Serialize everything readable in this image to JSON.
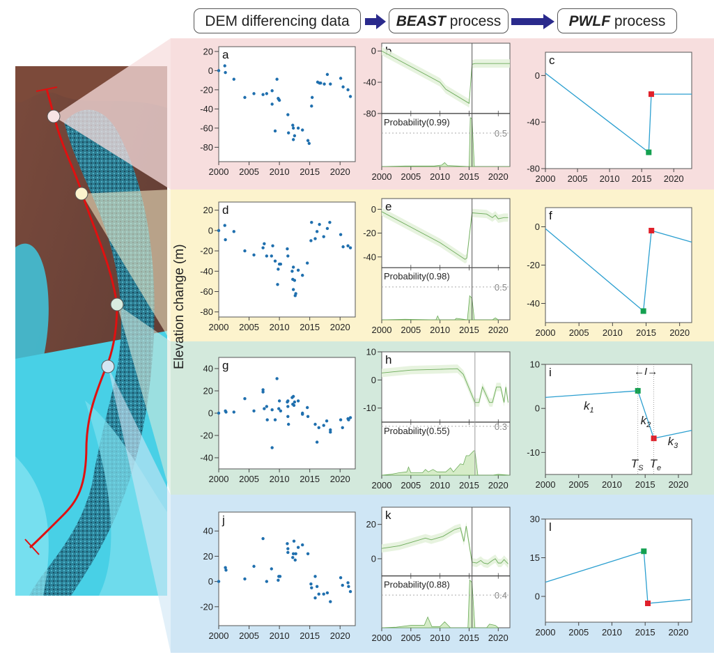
{
  "header": {
    "step1": "DEM differencing data",
    "step2_bold": "BEAST",
    "step2_rest": " process",
    "step3_bold": "PWLF",
    "step3_rest": " process"
  },
  "colors": {
    "band_a": "#f7dede",
    "band_d": "#fcf3cd",
    "band_g": "#d3e9dc",
    "band_j": "#cfe6f5",
    "scatter": "#1f6fae",
    "pwlf_line": "#2b9fd0",
    "start_marker": "#14a050",
    "end_marker": "#e0202a",
    "beast_line": "#6cab5a",
    "beast_band": "#e4f2dc",
    "arrow": "#2a2a8c",
    "profile_line": "#e01010"
  },
  "ylabel": "Elevation change (m)",
  "map": {
    "markers": [
      "profile-point-1",
      "profile-point-2",
      "profile-point-3",
      "profile-point-4"
    ]
  },
  "chart_data": [
    {
      "panel": "a",
      "type": "scatter",
      "xlim": [
        2000,
        2022.5
      ],
      "ylim": [
        -95,
        25
      ],
      "xticks": [
        2000,
        2005,
        2010,
        2015,
        2020
      ],
      "yticks": [
        20,
        0,
        -20,
        -40,
        -60,
        -80
      ],
      "x": [
        2000,
        2001,
        2001.1,
        2002.5,
        2004.3,
        2005.8,
        2007.3,
        2007.9,
        2008.8,
        2008.8,
        2009.3,
        2009.6,
        2009.8,
        2009.9,
        2010,
        2011.4,
        2011.5,
        2012.2,
        2012.3,
        2012.3,
        2012.5,
        2013.1,
        2013.8,
        2014.7,
        2014.9,
        2015.3,
        2015.4,
        2016.3,
        2016.6,
        2016.8,
        2017.4,
        2017.9,
        2018.4,
        2020.1,
        2020.5,
        2021.3,
        2021.7
      ],
      "y": [
        0,
        5,
        -2,
        -9,
        -28,
        -24,
        -25,
        -24,
        -21,
        -35,
        -63,
        -9,
        -29,
        -30,
        -31,
        -46,
        -65,
        -57,
        -60,
        -72,
        -68,
        -60,
        -62,
        -73,
        -76,
        -37,
        -28,
        -12,
        -13,
        -13,
        -14,
        -4,
        -14,
        -8,
        -17,
        -20,
        -27
      ]
    },
    {
      "panel": "b",
      "type": "line",
      "xlim": [
        2000,
        2022
      ],
      "ylim": [
        -80,
        10
      ],
      "xticks": [
        2000,
        2005,
        2010,
        2015,
        2020
      ],
      "yticks": [
        0,
        -40,
        -80
      ],
      "x": [
        2000,
        2005,
        2010,
        2011,
        2015,
        2015.5,
        2016,
        2022
      ],
      "y": [
        0,
        -20,
        -40,
        -49,
        -67,
        -17,
        -16,
        -16
      ],
      "changepoint": 2015.5,
      "probability_label": "Probability(0.99)",
      "prob_ref": "0.5",
      "prob_max": 1.0,
      "prob_x": [
        2000,
        2004,
        2009,
        2010.3,
        2010.8,
        2011.3,
        2015,
        2015.2,
        2015.5,
        2015.9,
        2016,
        2022
      ],
      "prob": [
        0,
        0.01,
        0.01,
        0.03,
        0.08,
        0.02,
        0,
        1.0,
        0.98,
        0,
        0,
        0
      ]
    },
    {
      "panel": "c",
      "type": "line",
      "xlim": [
        2000,
        2022.8
      ],
      "ylim": [
        -80,
        20
      ],
      "xticks": [
        2000,
        2005,
        2010,
        2015,
        2020
      ],
      "yticks": [
        0,
        -40,
        -80
      ],
      "x": [
        2000,
        2016.1,
        2016.5,
        2022.8
      ],
      "y": [
        2,
        -66,
        -16,
        -16
      ],
      "start_point": [
        2016.1,
        -66
      ],
      "end_point": [
        2016.5,
        -16
      ]
    },
    {
      "panel": "d",
      "type": "scatter",
      "xlim": [
        2000,
        2022.5
      ],
      "ylim": [
        -85,
        28
      ],
      "xticks": [
        2000,
        2005,
        2010,
        2015,
        2020
      ],
      "yticks": [
        20,
        0,
        -20,
        -40,
        -60,
        -80
      ],
      "x": [
        2000,
        2001,
        2001.1,
        2002.5,
        2004.3,
        2005.8,
        2007.3,
        2007.5,
        2007.9,
        2008.7,
        2008.9,
        2009.3,
        2009.7,
        2009.8,
        2010,
        2010.2,
        2011.3,
        2011.4,
        2012.1,
        2012.2,
        2012.3,
        2012.3,
        2012.5,
        2012.6,
        2012.7,
        2013.1,
        2013.8,
        2014.6,
        2015.2,
        2015.3,
        2015.9,
        2016.2,
        2016.6,
        2017.3,
        2017.9,
        2018.3,
        2020.1,
        2020.5,
        2021.3,
        2021.7
      ],
      "y": [
        0,
        5,
        -9,
        -1,
        -20,
        -24,
        -17,
        -13,
        -25,
        -25,
        -15,
        -30,
        -53,
        -38,
        -33,
        -33,
        -18,
        -25,
        -40,
        -48,
        -58,
        -36,
        -49,
        -64,
        -62,
        -39,
        -44,
        -32,
        -10,
        8,
        -8,
        -1,
        6,
        -6,
        2,
        8,
        -4,
        -16,
        -15,
        -17
      ]
    },
    {
      "panel": "e",
      "type": "line",
      "xlim": [
        2000,
        2022
      ],
      "ylim": [
        -49,
        9
      ],
      "xticks": [
        2000,
        2005,
        2010,
        2015,
        2020
      ],
      "yticks": [
        0,
        -20,
        -40
      ],
      "x": [
        2000,
        2005,
        2010,
        2014.3,
        2014.6,
        2015.5,
        2018,
        2019,
        2019.5,
        2020,
        2021,
        2021.7
      ],
      "y": [
        -2,
        -15,
        -28,
        -42,
        -41,
        -3,
        -4,
        -7,
        -5,
        -8,
        -7,
        -7
      ],
      "changepoint": 2015.5,
      "probability_label": "Probability(0.98)",
      "prob_ref": "0.5",
      "prob_max": 1.0,
      "prob_x": [
        2000,
        2004,
        2009.3,
        2009.6,
        2009.9,
        2012.5,
        2012.8,
        2014.7,
        2015.1,
        2015.5,
        2015.9,
        2019,
        2019.5,
        2020
      ],
      "prob": [
        0,
        0.01,
        0,
        0.08,
        0,
        0,
        0.03,
        0,
        0.5,
        0.45,
        0,
        0,
        0.04,
        0
      ]
    },
    {
      "panel": "f",
      "type": "line",
      "xlim": [
        2000,
        2021.8
      ],
      "ylim": [
        -50,
        10
      ],
      "xticks": [
        2000,
        2005,
        2010,
        2015,
        2020
      ],
      "yticks": [
        0,
        -20,
        -40
      ],
      "x": [
        2000,
        2014.6,
        2015.8,
        2021.8
      ],
      "y": [
        -1,
        -44,
        -2,
        -8
      ],
      "start_point": [
        2014.6,
        -44
      ],
      "end_point": [
        2015.8,
        -2
      ]
    },
    {
      "panel": "g",
      "type": "scatter",
      "xlim": [
        2000,
        2022.5
      ],
      "ylim": [
        -50,
        50
      ],
      "xticks": [
        2000,
        2005,
        2010,
        2015,
        2020
      ],
      "yticks": [
        40,
        20,
        0,
        -20,
        -40
      ],
      "x": [
        2000,
        2001.1,
        2001.2,
        2002.5,
        2004.3,
        2005.8,
        2007.3,
        2007.3,
        2007.5,
        2007.9,
        2008,
        2008.8,
        2008.8,
        2009.3,
        2009.6,
        2009.9,
        2010,
        2010.2,
        2011.3,
        2011.4,
        2011.4,
        2011.4,
        2011.5,
        2012.1,
        2012.2,
        2012.3,
        2012.4,
        2012.5,
        2013.1,
        2013.8,
        2013.8,
        2014.6,
        2014.7,
        2015.9,
        2016.2,
        2016.5,
        2017.3,
        2017.8,
        2018.4,
        2018.4,
        2020.1,
        2020.4,
        2021.3,
        2021.4,
        2021.7
      ],
      "y": [
        0,
        2,
        1,
        1,
        13,
        2,
        21,
        19,
        4,
        6,
        -6,
        3,
        -31,
        -6,
        31,
        4,
        11,
        2,
        10,
        11,
        6,
        -3,
        -10,
        14,
        8,
        15,
        7,
        10,
        11,
        0,
        -1,
        5,
        -3,
        -10,
        -26,
        -13,
        -11,
        -7,
        -15,
        -17,
        -6,
        -13,
        -5,
        -6,
        -4
      ]
    },
    {
      "panel": "h",
      "type": "line",
      "xlim": [
        2000,
        2022
      ],
      "ylim": [
        -15,
        10
      ],
      "xticks": [
        2000,
        2005,
        2010,
        2015,
        2020
      ],
      "yticks": [
        10,
        0,
        -10
      ],
      "x": [
        2000,
        2005,
        2010,
        2013,
        2014,
        2015,
        2016,
        2016.7,
        2017.3,
        2018.5,
        2019,
        2019.7,
        2020.4,
        2021,
        2021.3,
        2021.7
      ],
      "y": [
        2.5,
        3.5,
        3.8,
        4,
        2,
        -3,
        -8,
        -8,
        -2.5,
        -8,
        -8,
        -2.5,
        -2.5,
        -8,
        -2.5,
        -8
      ],
      "changepoint": 16.0,
      "probability_label": "Probability(0.55)",
      "prob_ref": "0.3",
      "prob_max": 0.3,
      "prob_x": [
        2000,
        2001.5,
        2003,
        2004.3,
        2004.6,
        2005,
        2007,
        2007.5,
        2008,
        2008.8,
        2009.5,
        2011,
        2011.8,
        2012.3,
        2013.5,
        2014,
        2014.5,
        2015,
        2015.8,
        2016,
        2016.5,
        2019,
        2020,
        2022
      ],
      "prob": [
        0,
        0.005,
        0.015,
        0.02,
        0.05,
        0.015,
        0.015,
        0.035,
        0.02,
        0.035,
        0.02,
        0.02,
        0.045,
        0.02,
        0.07,
        0.065,
        0.12,
        0.12,
        0.15,
        0.15,
        0,
        0,
        0.005,
        0
      ]
    },
    {
      "panel": "i",
      "type": "line",
      "xlim": [
        2000,
        2022
      ],
      "ylim": [
        -15,
        10
      ],
      "xticks": [
        2000,
        2005,
        2010,
        2015,
        2020
      ],
      "yticks": [
        10,
        0,
        -10
      ],
      "x": [
        2000,
        2013.9,
        2016.3,
        2022
      ],
      "y": [
        2.5,
        4,
        -6.8,
        -5
      ],
      "start_point": [
        2013.9,
        4
      ],
      "end_point": [
        2016.3,
        -6.8
      ],
      "annotations": {
        "k1": "k",
        "k1_sub": "1",
        "k2": "k",
        "k2_sub": "2",
        "k3": "k",
        "k3_sub": "3",
        "ts": "T",
        "ts_sub": "S",
        "te": "T",
        "te_sub": "e",
        "interval": "I"
      }
    },
    {
      "panel": "j",
      "type": "scatter",
      "xlim": [
        2000,
        2022.5
      ],
      "ylim": [
        -35,
        55
      ],
      "xticks": [
        2000,
        2005,
        2010,
        2015,
        2020
      ],
      "yticks": [
        40,
        20,
        0,
        -20
      ],
      "x": [
        2000,
        2001.1,
        2001.2,
        2004.3,
        2005.8,
        2007.3,
        2007.9,
        2008.7,
        2009.8,
        2009.9,
        2010.1,
        2011.3,
        2011.4,
        2011.4,
        2012.2,
        2012.3,
        2012.4,
        2012.6,
        2012.7,
        2013.1,
        2013.8,
        2014.7,
        2015.2,
        2015.3,
        2015.9,
        2015.9,
        2016.2,
        2016.5,
        2017.3,
        2017.9,
        2018.4,
        2020.1,
        2020.4,
        2021.3,
        2021.4,
        2021.7
      ],
      "y": [
        0,
        11,
        9,
        2,
        12,
        34,
        0,
        10,
        1,
        4,
        4,
        30,
        26,
        23,
        19,
        22,
        32,
        17,
        22,
        27,
        29,
        22,
        -2,
        -5,
        4,
        -13,
        -4,
        -10,
        -10,
        -9,
        -16,
        3,
        -3,
        -1,
        -4,
        -8
      ]
    },
    {
      "panel": "k",
      "type": "line",
      "xlim": [
        2000,
        2022
      ],
      "ylim": [
        -10,
        30
      ],
      "xticks": [
        2000,
        2005,
        2010,
        2015,
        2020
      ],
      "yticks": [
        20,
        0
      ],
      "x": [
        2000,
        2003,
        2005,
        2007.5,
        2008.5,
        2010.5,
        2012.5,
        2013.5,
        2014.1,
        2014.5,
        2015.5,
        2016.3,
        2017,
        2017.5,
        2018.2,
        2019,
        2019.5,
        2020,
        2020.5,
        2021,
        2021.7
      ],
      "y": [
        6,
        7.5,
        9.5,
        12,
        11,
        13,
        17,
        18,
        10,
        19,
        -2,
        -2.5,
        -1,
        -2.5,
        -3,
        -1,
        0,
        -2.5,
        -2.5,
        -0.5,
        -3
      ],
      "changepoint": 2015.5,
      "probability_label": "Probability(0.88)",
      "prob_ref": "0.4",
      "prob_max": 0.4,
      "prob_x": [
        2000,
        2002.5,
        2005,
        2007.3,
        2007.9,
        2008.6,
        2010,
        2010.8,
        2011.8,
        2014.8,
        2015.1,
        2015.5,
        2016,
        2018,
        2018.5,
        2019.5,
        2020
      ],
      "prob": [
        0,
        0.005,
        0.02,
        0.02,
        0.09,
        0.01,
        0.01,
        0.05,
        0,
        0,
        0.4,
        0.38,
        0,
        0,
        0.03,
        0.02,
        0
      ]
    },
    {
      "panel": "l",
      "type": "line",
      "xlim": [
        2000,
        2022
      ],
      "ylim": [
        -10,
        30
      ],
      "xticks": [
        2000,
        2005,
        2010,
        2015,
        2020
      ],
      "yticks": [
        30,
        15,
        0
      ],
      "x": [
        2000,
        2014.8,
        2015.4,
        2021.8
      ],
      "y": [
        5.5,
        17.5,
        -2.7,
        -1.2
      ],
      "start_point": [
        2014.8,
        17.5
      ],
      "end_point": [
        2015.4,
        -2.7
      ]
    }
  ]
}
